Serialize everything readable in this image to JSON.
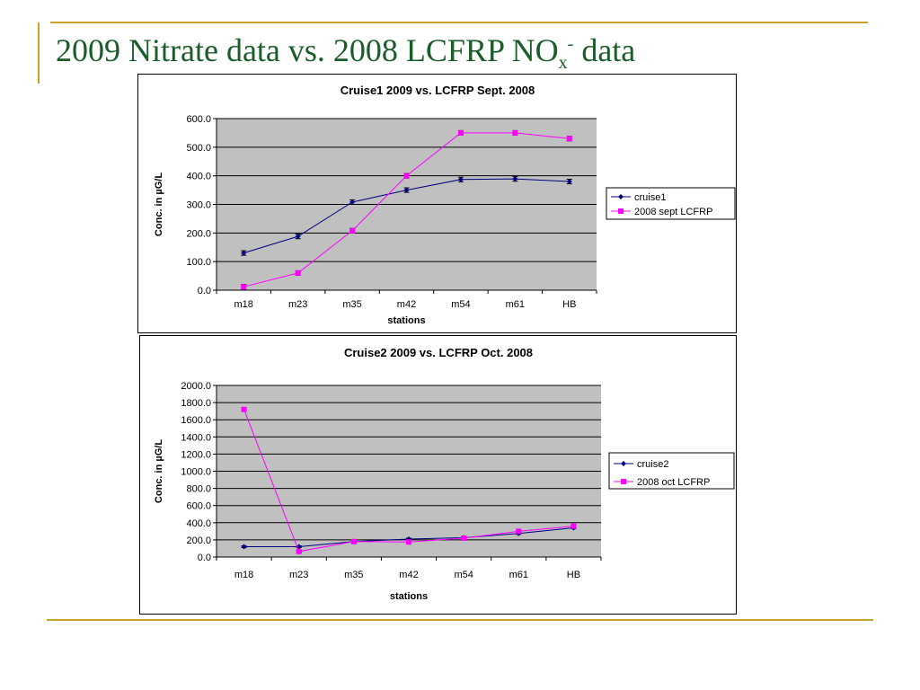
{
  "slide": {
    "title_main": "2009 Nitrate data vs. 2008 LCFRP NO",
    "title_sub": "x",
    "title_sup": "-",
    "title_tail": " data"
  },
  "colors": {
    "accent": "#c9a227",
    "title": "#1a5c2a",
    "plot_bg": "#c0c0c0",
    "series_a": "#000080",
    "series_b": "#ff00ff"
  },
  "chart_data": [
    {
      "type": "line",
      "title": "Cruise1 2009 vs. LCFRP Sept. 2008",
      "xlabel": "stations",
      "ylabel": "Conc. in µG/L",
      "categories": [
        "m18",
        "m23",
        "m35",
        "m42",
        "m54",
        "m61",
        "HB"
      ],
      "ylim": [
        0,
        600
      ],
      "yticks": [
        "0.0",
        "100.0",
        "200.0",
        "300.0",
        "400.0",
        "500.0",
        "600.0"
      ],
      "grid": true,
      "legend": "right",
      "error_bars": true,
      "series": [
        {
          "name": "cruise1",
          "marker": "diamond",
          "color": "#000080",
          "values": [
            130,
            188,
            308,
            350,
            387,
            389,
            380
          ],
          "error": [
            8,
            8,
            8,
            8,
            8,
            8,
            8
          ]
        },
        {
          "name": "2008 sept LCFRP",
          "marker": "square",
          "color": "#ff00ff",
          "values": [
            12,
            60,
            208,
            400,
            550,
            550,
            530
          ],
          "error": [
            8,
            8,
            8,
            8,
            8,
            8,
            8
          ]
        }
      ]
    },
    {
      "type": "line",
      "title": "Cruise2 2009 vs. LCFRP Oct. 2008",
      "xlabel": "stations",
      "ylabel": "Conc. in µG/L",
      "categories": [
        "m18",
        "m23",
        "m35",
        "m42",
        "m54",
        "m61",
        "HB"
      ],
      "ylim": [
        0,
        2000
      ],
      "yticks": [
        "0.0",
        "200.0",
        "400.0",
        "600.0",
        "800.0",
        "1000.0",
        "1200.0",
        "1400.0",
        "1600.0",
        "1800.0",
        "2000.0"
      ],
      "grid": true,
      "legend": "right",
      "error_bars": true,
      "series": [
        {
          "name": "cruise2",
          "marker": "diamond",
          "color": "#000080",
          "values": [
            120,
            120,
            180,
            210,
            225,
            275,
            340
          ],
          "error": [
            10,
            10,
            10,
            10,
            10,
            10,
            10
          ]
        },
        {
          "name": "2008 oct LCFRP",
          "marker": "square",
          "color": "#ff00ff",
          "values": [
            1720,
            65,
            180,
            175,
            220,
            300,
            360
          ],
          "error": [
            15,
            10,
            10,
            10,
            10,
            10,
            10
          ]
        }
      ]
    }
  ]
}
